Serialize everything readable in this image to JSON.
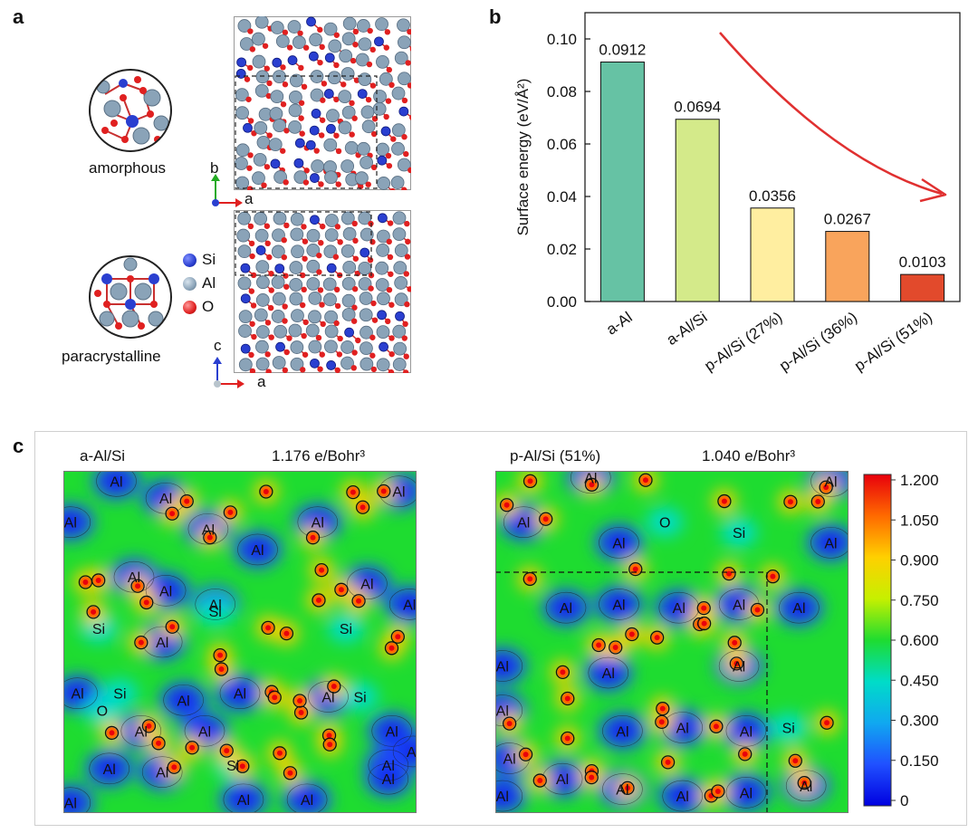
{
  "panels": {
    "a": {
      "letter": "a",
      "amorphous_label": "amorphous",
      "paracrystalline_label": "paracrystalline",
      "legend": [
        {
          "symbol": "Si",
          "color": "#2a3fd0"
        },
        {
          "symbol": "Al",
          "color": "#8aa3b8"
        },
        {
          "symbol": "O",
          "color": "#e02020"
        }
      ],
      "axes_top": {
        "vertical": "b",
        "horizontal": "a"
      },
      "axes_bottom": {
        "vertical": "c",
        "horizontal": "a"
      }
    },
    "b": {
      "letter": "b"
    },
    "c": {
      "letter": "c",
      "left_title": "a-Al/Si",
      "left_value": "1.176 e/Bohr³",
      "right_title": "p-Al/Si (51%)",
      "right_value": "1.040 e/Bohr³",
      "left_atoms": [
        [
          "Al",
          0.15,
          0.03
        ],
        [
          "Al",
          0.29,
          0.08
        ],
        [
          "Al",
          0.95,
          0.06
        ],
        [
          "Al",
          0.02,
          0.15
        ],
        [
          "Al",
          0.41,
          0.17
        ],
        [
          "Al",
          0.72,
          0.15
        ],
        [
          "Al",
          0.55,
          0.23
        ],
        [
          "Al",
          0.2,
          0.31
        ],
        [
          "Al",
          0.29,
          0.35
        ],
        [
          "Al",
          0.43,
          0.39
        ],
        [
          "Si",
          0.43,
          0.41
        ],
        [
          "Al",
          0.86,
          0.33
        ],
        [
          "Al",
          0.98,
          0.39
        ],
        [
          "Si",
          0.1,
          0.46
        ],
        [
          "Al",
          0.28,
          0.5
        ],
        [
          "Si",
          0.8,
          0.46
        ],
        [
          "Al",
          0.04,
          0.65
        ],
        [
          "Si",
          0.16,
          0.65
        ],
        [
          "Al",
          0.34,
          0.67
        ],
        [
          "Al",
          0.5,
          0.65
        ],
        [
          "Al",
          0.75,
          0.66
        ],
        [
          "Si",
          0.84,
          0.66
        ],
        [
          "O",
          0.11,
          0.7
        ],
        [
          "Al",
          0.22,
          0.76
        ],
        [
          "Al",
          0.4,
          0.76
        ],
        [
          "Al",
          0.93,
          0.76
        ],
        [
          "Al",
          0.13,
          0.87
        ],
        [
          "Al",
          0.28,
          0.88
        ],
        [
          "Si",
          0.48,
          0.86
        ],
        [
          "Al",
          0.92,
          0.86
        ],
        [
          "Al",
          0.99,
          0.82
        ],
        [
          "Al",
          0.02,
          0.97
        ],
        [
          "Al",
          0.51,
          0.96
        ],
        [
          "Al",
          0.69,
          0.96
        ],
        [
          "Al",
          0.92,
          0.9
        ]
      ],
      "right_atoms": [
        [
          "Al",
          0.27,
          0.02
        ],
        [
          "Al",
          0.95,
          0.03
        ],
        [
          "Al",
          0.08,
          0.15
        ],
        [
          "O",
          0.48,
          0.15
        ],
        [
          "Si",
          0.69,
          0.18
        ],
        [
          "Al",
          0.35,
          0.21
        ],
        [
          "Al",
          0.95,
          0.21
        ],
        [
          "Al",
          0.2,
          0.4
        ],
        [
          "Al",
          0.35,
          0.39
        ],
        [
          "Al",
          0.52,
          0.4
        ],
        [
          "Al",
          0.69,
          0.39
        ],
        [
          "Al",
          0.86,
          0.4
        ],
        [
          "Al",
          0.02,
          0.57
        ],
        [
          "Al",
          0.32,
          0.59
        ],
        [
          "Al",
          0.69,
          0.57
        ],
        [
          "Al",
          0.02,
          0.7
        ],
        [
          "Al",
          0.36,
          0.76
        ],
        [
          "Al",
          0.53,
          0.75
        ],
        [
          "Al",
          0.71,
          0.76
        ],
        [
          "Si",
          0.83,
          0.75
        ],
        [
          "Al",
          0.04,
          0.84
        ],
        [
          "Al",
          0.19,
          0.9
        ],
        [
          "Al",
          0.36,
          0.93
        ],
        [
          "Al",
          0.53,
          0.95
        ],
        [
          "Al",
          0.71,
          0.94
        ],
        [
          "Al",
          0.88,
          0.92
        ],
        [
          "Al",
          0.02,
          0.95
        ]
      ]
    }
  },
  "colorbar": {
    "ticks": [
      "1.200",
      "1.050",
      "0.900",
      "0.750",
      "0.600",
      "0.450",
      "0.300",
      "0.150",
      "0"
    ],
    "colors": [
      "#e8000c",
      "#ff6a00",
      "#ffd000",
      "#c6f000",
      "#1edc30",
      "#00dcc8",
      "#10a8f0",
      "#2050ff",
      "#0000e0"
    ]
  },
  "chart_data": {
    "type": "bar",
    "ylabel": "Surface energy (eV/Å²)",
    "categories": [
      "a-Al",
      "a-Al/Si",
      "p-Al/Si (27%)",
      "p-Al/Si (36%)",
      "p-Al/Si (51%)"
    ],
    "values": [
      0.0912,
      0.0694,
      0.0356,
      0.0267,
      0.0103
    ],
    "value_labels": [
      "0.0912",
      "0.0694",
      "0.0356",
      "0.0267",
      "0.0103"
    ],
    "colors": [
      "#66c2a4",
      "#d4ea8a",
      "#ffeea0",
      "#f9a45c",
      "#e24a2c"
    ],
    "ylim": [
      0,
      0.11
    ],
    "yticks": [
      0.0,
      0.02,
      0.04,
      0.06,
      0.08,
      0.1
    ],
    "ytick_labels": [
      "0.00",
      "0.02",
      "0.04",
      "0.06",
      "0.08",
      "0.10"
    ],
    "annotation_arrow_color": "#e03030"
  }
}
